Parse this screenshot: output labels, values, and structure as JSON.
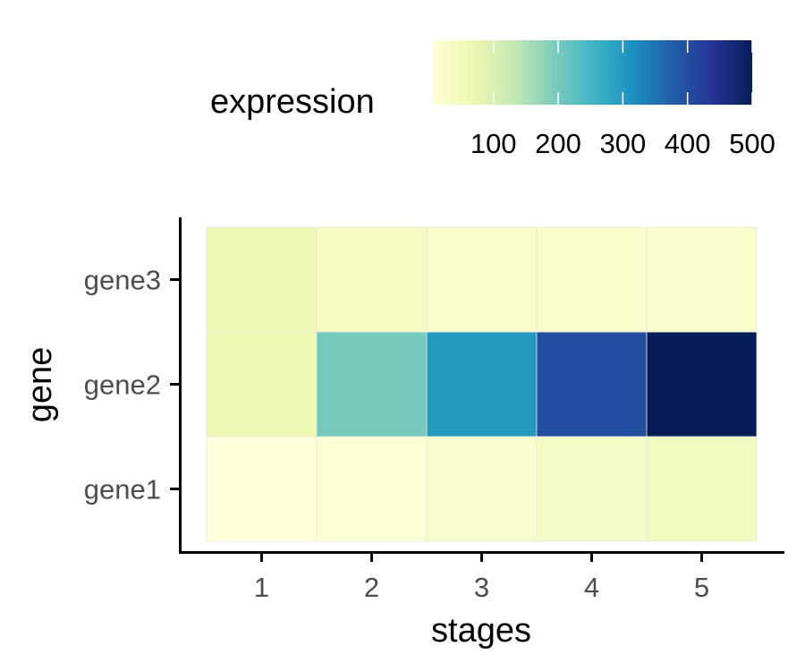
{
  "chart_data": {
    "type": "heatmap",
    "title": "",
    "xlabel": "stages",
    "ylabel": "gene",
    "x_categories": [
      "1",
      "2",
      "3",
      "4",
      "5"
    ],
    "y_categories": [
      "gene1",
      "gene2",
      "gene3"
    ],
    "values": {
      "gene1": [
        5,
        15,
        25,
        35,
        45
      ],
      "gene2": [
        60,
        200,
        300,
        400,
        500
      ],
      "gene3": [
        60,
        40,
        30,
        30,
        25
      ]
    },
    "legend": {
      "title": "expression",
      "position": "top",
      "ticks": [
        100,
        200,
        300,
        400,
        500
      ],
      "range": [
        5,
        500
      ],
      "colors": [
        "#ffffd9",
        "#edf8b1",
        "#c7e9b4",
        "#7fcdbb",
        "#41b6c4",
        "#1d91c0",
        "#225ea8",
        "#253494",
        "#081d58"
      ]
    },
    "grid": false
  }
}
